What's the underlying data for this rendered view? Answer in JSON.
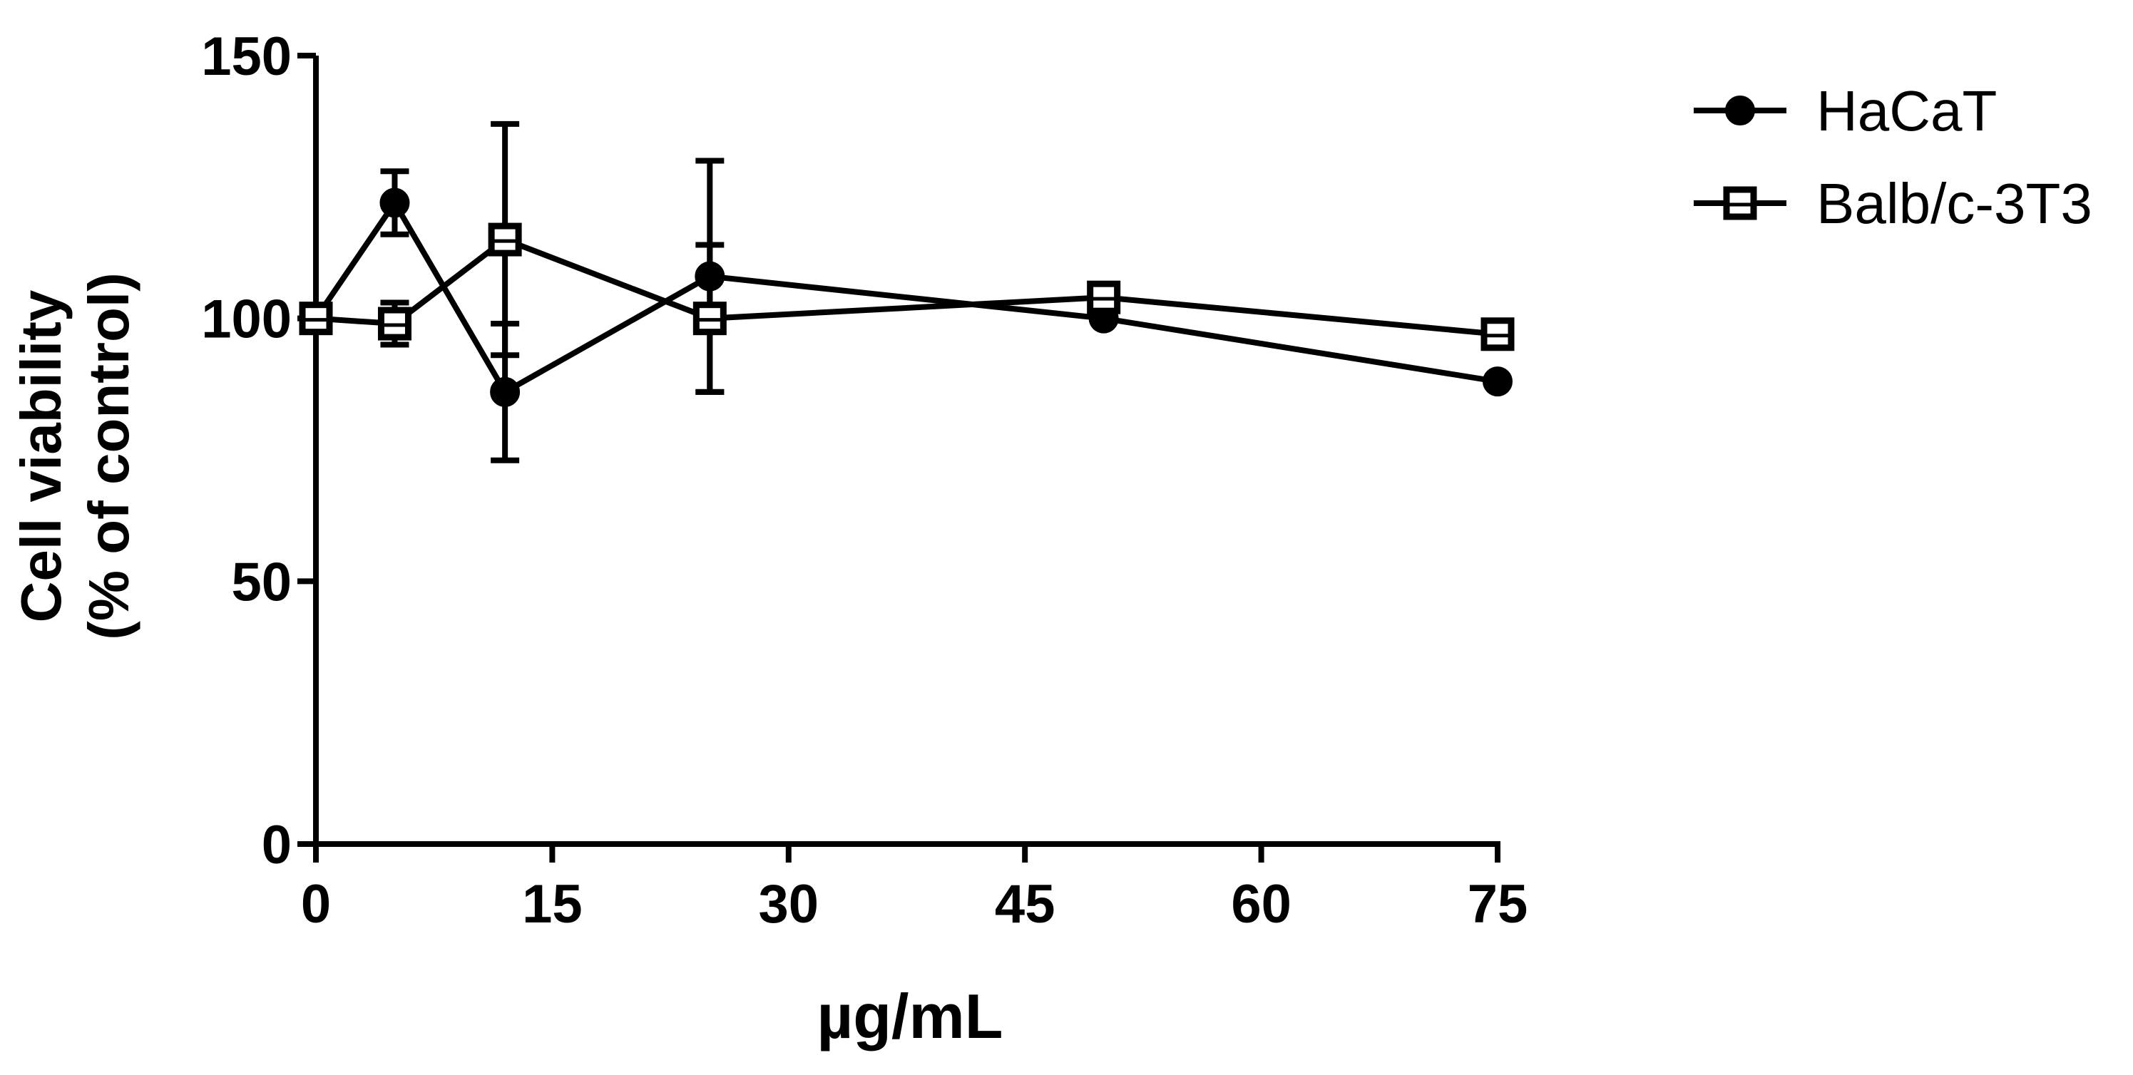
{
  "chart_data": {
    "type": "line",
    "title": "",
    "xlabel": "µg/mL",
    "ylabel_lines": [
      "Cell viability",
      "(% of control)"
    ],
    "xlim": [
      0,
      75
    ],
    "ylim": [
      0,
      150
    ],
    "x_ticks": [
      0,
      15,
      30,
      45,
      60,
      75
    ],
    "y_ticks": [
      0,
      50,
      100,
      150
    ],
    "grid": false,
    "legend_position": "top-right",
    "series": [
      {
        "name": "HaCaT",
        "marker": "filled-circle",
        "color": "#000000",
        "x": [
          0,
          5,
          12,
          25,
          50,
          75
        ],
        "y": [
          100,
          122,
          86,
          108,
          100,
          88
        ],
        "error": [
          0,
          6,
          13,
          22,
          0,
          0
        ]
      },
      {
        "name": "Balb/c-3T3",
        "marker": "open-square",
        "color": "#000000",
        "x": [
          0,
          5,
          12,
          25,
          50,
          75
        ],
        "y": [
          100,
          99,
          115,
          100,
          104,
          97
        ],
        "error": [
          0,
          4,
          22,
          14,
          0,
          0
        ]
      }
    ]
  }
}
